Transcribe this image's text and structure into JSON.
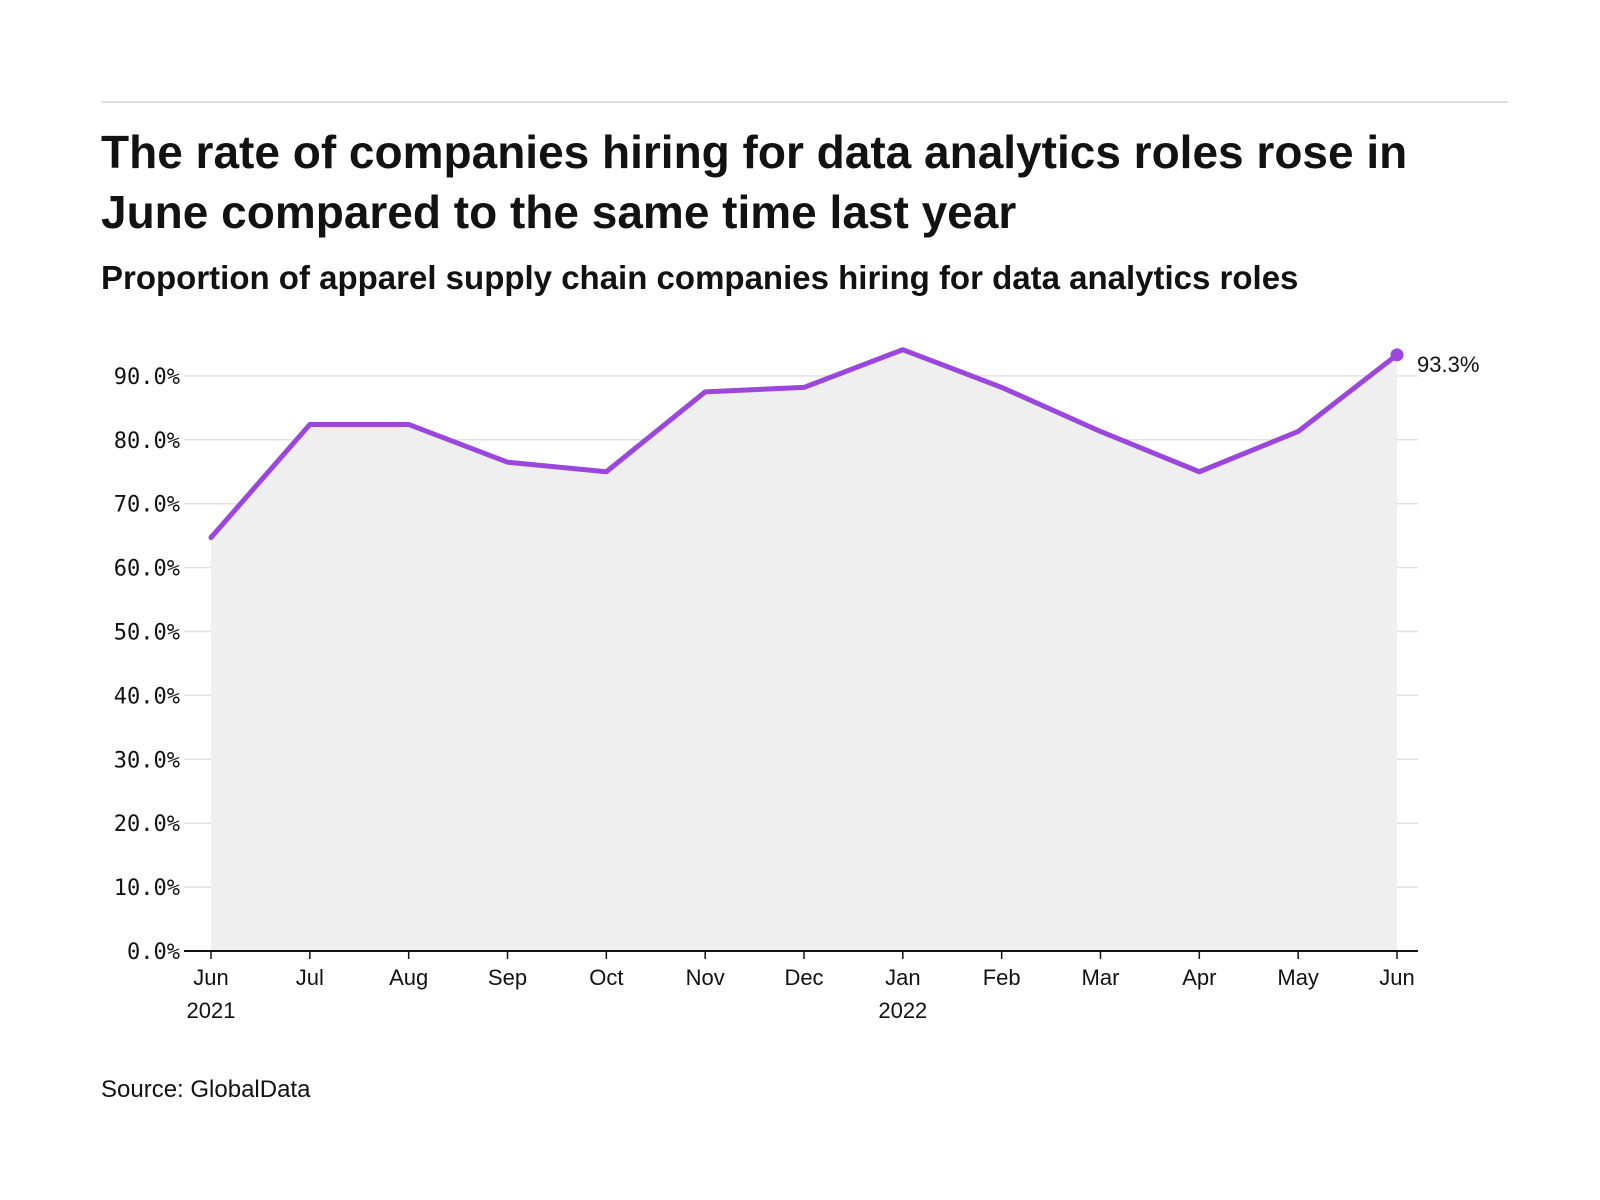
{
  "header": {
    "title": "The rate of companies hiring for data analytics roles rose in June compared to the same time last year",
    "subtitle": "Proportion of apparel supply chain companies hiring for data analytics roles"
  },
  "footer": {
    "source": "Source: GlobalData"
  },
  "colors": {
    "line": "#9b46dc",
    "area": "#efefef",
    "grid": "#e2e2e2",
    "axis": "#121212"
  },
  "chart_data": {
    "type": "area",
    "title": "The rate of companies hiring for data analytics roles rose in June compared to the same time last year",
    "subtitle": "Proportion of apparel supply chain companies hiring for data analytics roles",
    "xlabel": "",
    "ylabel": "",
    "categories": [
      "Jun 2021",
      "Jul 2021",
      "Aug 2021",
      "Sep 2021",
      "Oct 2021",
      "Nov 2021",
      "Dec 2021",
      "Jan 2022",
      "Feb 2022",
      "Mar 2022",
      "Apr 2022",
      "May 2022",
      "Jun 2022"
    ],
    "x_tick_labels": [
      {
        "month": "Jun",
        "year": "2021"
      },
      {
        "month": "Jul",
        "year": ""
      },
      {
        "month": "Aug",
        "year": ""
      },
      {
        "month": "Sep",
        "year": ""
      },
      {
        "month": "Oct",
        "year": ""
      },
      {
        "month": "Nov",
        "year": ""
      },
      {
        "month": "Dec",
        "year": ""
      },
      {
        "month": "Jan",
        "year": "2022"
      },
      {
        "month": "Feb",
        "year": ""
      },
      {
        "month": "Mar",
        "year": ""
      },
      {
        "month": "Apr",
        "year": ""
      },
      {
        "month": "May",
        "year": ""
      },
      {
        "month": "Jun",
        "year": ""
      }
    ],
    "series": [
      {
        "values": [
          64.7,
          82.4,
          82.4,
          76.5,
          75.0,
          87.5,
          88.2,
          94.1,
          88.2,
          81.3,
          75.0,
          81.3,
          93.3
        ]
      }
    ],
    "ylim": [
      0,
      100
    ],
    "y_ticks": [
      0,
      10,
      20,
      30,
      40,
      50,
      60,
      70,
      80,
      90
    ],
    "y_tick_labels": [
      "0.0%",
      "10.0%",
      "20.0%",
      "30.0%",
      "40.0%",
      "50.0%",
      "60.0%",
      "70.0%",
      "80.0%",
      "90.0%"
    ],
    "grid": true,
    "legend": "none",
    "end_label": "93.3%"
  }
}
